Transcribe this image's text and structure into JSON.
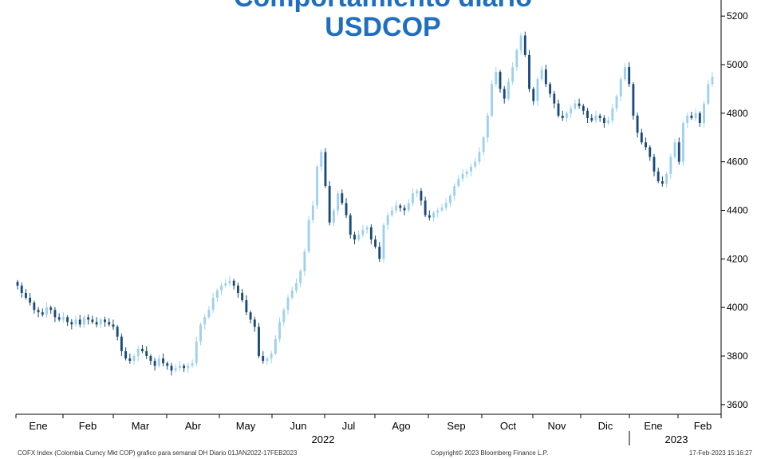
{
  "title": {
    "line1": "Comportamiento diario",
    "line2": "USDCOP"
  },
  "footer": {
    "left": "COFX Index (Colombia Curncy Mkt COP) grafico para semanal DH  Diario 01JAN2022-17FEB2023",
    "center": "Copyright© 2023 Bloomberg Finance L.P.",
    "right": "17-Feb-2023 15:16:27"
  },
  "colors": {
    "up": "#9dd0f0",
    "down": "#1a4a7a",
    "title": "#1f6fbf",
    "axis": "#000000"
  },
  "chart_data": {
    "type": "candlestick",
    "ylim": [
      3560,
      5240
    ],
    "y_ticks": [
      3600,
      3800,
      4000,
      4200,
      4400,
      4600,
      4800,
      5000,
      5200
    ],
    "y_tick_labels": [
      "3600",
      "3800",
      "4000",
      "4200",
      "4400",
      "4600",
      "4800",
      "5000",
      "5200"
    ],
    "grid": false,
    "legend": "none",
    "month_labels": [
      "Ene",
      "Feb",
      "Mar",
      "Abr",
      "May",
      "Jun",
      "Jul",
      "Ago",
      "Sep",
      "Oct",
      "Nov",
      "Dic",
      "Ene",
      "Feb"
    ],
    "year_labels": [
      "2022",
      "2023"
    ],
    "x_range": [
      "2022-01-01",
      "2023-02-17"
    ],
    "series": [
      {
        "values_close": [
          4090,
          4060,
          4040,
          4020,
          3990,
          3980,
          3970,
          4000,
          3990,
          3960,
          3950,
          3960,
          3940,
          3930,
          3950,
          3930,
          3960,
          3950,
          3940,
          3930,
          3950,
          3940,
          3930,
          3920,
          3880,
          3820,
          3790,
          3780,
          3800,
          3830,
          3820,
          3800,
          3780,
          3760,
          3790,
          3770,
          3760,
          3740,
          3750,
          3760,
          3750,
          3760,
          3770,
          3860,
          3930,
          3960,
          3990,
          4040,
          4070,
          4090,
          4100,
          4110,
          4090,
          4060,
          4030,
          3980,
          3950,
          3920,
          3800,
          3780,
          3790,
          3810,
          3870,
          3940,
          3990,
          4040,
          4070,
          4100,
          4150,
          4230,
          4360,
          4420,
          4580,
          4640,
          4500,
          4350,
          4400,
          4470,
          4430,
          4380,
          4300,
          4280,
          4300,
          4320,
          4330,
          4280,
          4250,
          4200,
          4340,
          4380,
          4400,
          4420,
          4410,
          4400,
          4430,
          4470,
          4480,
          4440,
          4380,
          4370,
          4390,
          4400,
          4410,
          4430,
          4460,
          4500,
          4530,
          4550,
          4560,
          4580,
          4600,
          4640,
          4700,
          4790,
          4920,
          4970,
          4900,
          4860,
          4930,
          4990,
          5060,
          5120,
          5040,
          4900,
          4850,
          4940,
          4980,
          4920,
          4880,
          4840,
          4790,
          4780,
          4800,
          4820,
          4840,
          4830,
          4810,
          4780,
          4770,
          4790,
          4780,
          4760,
          4770,
          4820,
          4870,
          4940,
          4990,
          4920,
          4790,
          4720,
          4680,
          4660,
          4620,
          4560,
          4520,
          4510,
          4550,
          4620,
          4680,
          4600,
          4760,
          4790,
          4780,
          4800,
          4760,
          4840,
          4920,
          4950
        ]
      }
    ]
  }
}
